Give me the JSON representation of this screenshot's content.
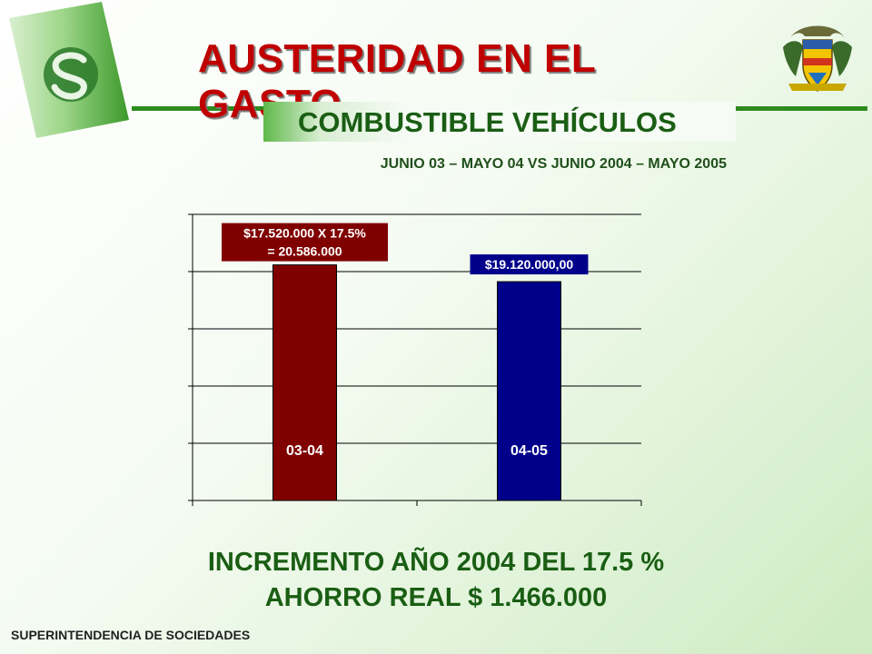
{
  "title": "AUSTERIDAD EN EL GASTO",
  "subtitle": "COMBUSTIBLE VEHÍCULOS",
  "period": "JUNIO 03 – MAYO 04 VS JUNIO 2004 – MAYO 2005",
  "summary_line1": "INCREMENTO AÑO 2004 DEL 17.5 %",
  "summary_line2": "AHORRO REAL $ 1.466.000",
  "footer": "SUPERINTENDENCIA DE SOCIEDADES",
  "colors": {
    "title": "#c00000",
    "accent_green": "#1a5e14",
    "bar_1": "#800000",
    "bar_2": "#00008b"
  },
  "chart_data": {
    "type": "bar",
    "title": "",
    "xlabel": "",
    "ylabel": "",
    "categories": [
      "03-04",
      "04-05"
    ],
    "values": [
      20586000,
      19120000
    ],
    "data_labels": [
      [
        "$17.520.000 X 17.5%",
        "= 20.586.000"
      ],
      [
        "$19.120.000,00"
      ]
    ],
    "ylim": [
      0,
      25000000
    ],
    "grid": true,
    "legend": "none"
  }
}
